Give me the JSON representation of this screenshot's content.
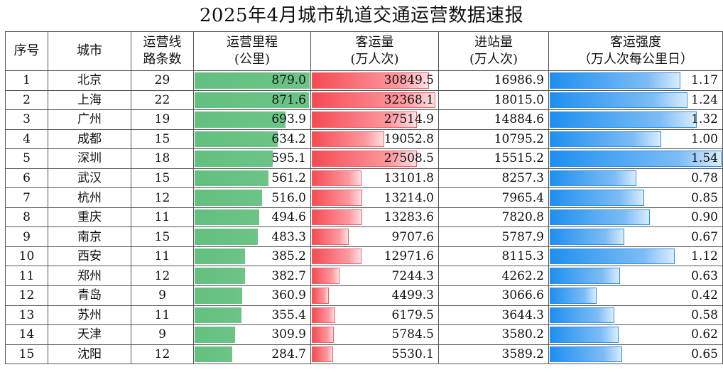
{
  "title": "2025年4月城市轨道交通运营数据速报",
  "headers": {
    "rank": "序号",
    "city": "城市",
    "lines": [
      "运营线",
      "路条数"
    ],
    "mileage": [
      "运营里程",
      "(公里)"
    ],
    "passengers": [
      "客运量",
      "(万人次)"
    ],
    "entries": [
      "进站量",
      "(万人次)"
    ],
    "intensity": [
      "客运强度",
      "（万人次每公里日）"
    ]
  },
  "colors": {
    "mileage_bar": "#63c07f",
    "passengers_bar": "#f64a52",
    "intensity_bar": "#1e8ff0"
  },
  "chart_data": {
    "type": "table",
    "title": "2025年4月城市轨道交通运营数据速报",
    "columns": [
      "序号",
      "城市",
      "运营线路条数",
      "运营里程(公里)",
      "客运量(万人次)",
      "进站量(万人次)",
      "客运强度（万人次每公里日）"
    ],
    "bar_scales": {
      "mileage_max": 879.0,
      "passengers_max": 32368.1,
      "intensity_max": 1.54
    },
    "rows": [
      {
        "rank": "1",
        "city": "北京",
        "lines": "29",
        "mileage": "879.0",
        "passengers": "30849.5",
        "entries": "16986.9",
        "intensity": "1.17"
      },
      {
        "rank": "2",
        "city": "上海",
        "lines": "22",
        "mileage": "871.6",
        "passengers": "32368.1",
        "entries": "18015.0",
        "intensity": "1.24"
      },
      {
        "rank": "3",
        "city": "广州",
        "lines": "19",
        "mileage": "693.9",
        "passengers": "27514.9",
        "entries": "14884.6",
        "intensity": "1.32"
      },
      {
        "rank": "4",
        "city": "成都",
        "lines": "15",
        "mileage": "634.2",
        "passengers": "19052.8",
        "entries": "10795.2",
        "intensity": "1.00"
      },
      {
        "rank": "5",
        "city": "深圳",
        "lines": "18",
        "mileage": "595.1",
        "passengers": "27508.5",
        "entries": "15515.2",
        "intensity": "1.54"
      },
      {
        "rank": "6",
        "city": "武汉",
        "lines": "15",
        "mileage": "561.2",
        "passengers": "13101.8",
        "entries": "8257.3",
        "intensity": "0.78"
      },
      {
        "rank": "7",
        "city": "杭州",
        "lines": "12",
        "mileage": "516.0",
        "passengers": "13214.0",
        "entries": "7965.4",
        "intensity": "0.85"
      },
      {
        "rank": "8",
        "city": "重庆",
        "lines": "11",
        "mileage": "494.6",
        "passengers": "13283.6",
        "entries": "7820.8",
        "intensity": "0.90"
      },
      {
        "rank": "9",
        "city": "南京",
        "lines": "15",
        "mileage": "483.3",
        "passengers": "9707.6",
        "entries": "5787.9",
        "intensity": "0.67"
      },
      {
        "rank": "10",
        "city": "西安",
        "lines": "11",
        "mileage": "385.2",
        "passengers": "12971.6",
        "entries": "8115.3",
        "intensity": "1.12"
      },
      {
        "rank": "11",
        "city": "郑州",
        "lines": "12",
        "mileage": "382.7",
        "passengers": "7244.3",
        "entries": "4262.2",
        "intensity": "0.63"
      },
      {
        "rank": "12",
        "city": "青岛",
        "lines": "9",
        "mileage": "360.9",
        "passengers": "4499.3",
        "entries": "3066.6",
        "intensity": "0.42"
      },
      {
        "rank": "13",
        "city": "苏州",
        "lines": "11",
        "mileage": "355.4",
        "passengers": "6179.5",
        "entries": "3644.3",
        "intensity": "0.58"
      },
      {
        "rank": "14",
        "city": "天津",
        "lines": "9",
        "mileage": "309.9",
        "passengers": "5784.5",
        "entries": "3580.2",
        "intensity": "0.62"
      },
      {
        "rank": "15",
        "city": "沈阳",
        "lines": "12",
        "mileage": "284.7",
        "passengers": "5530.1",
        "entries": "3589.2",
        "intensity": "0.65"
      }
    ]
  }
}
